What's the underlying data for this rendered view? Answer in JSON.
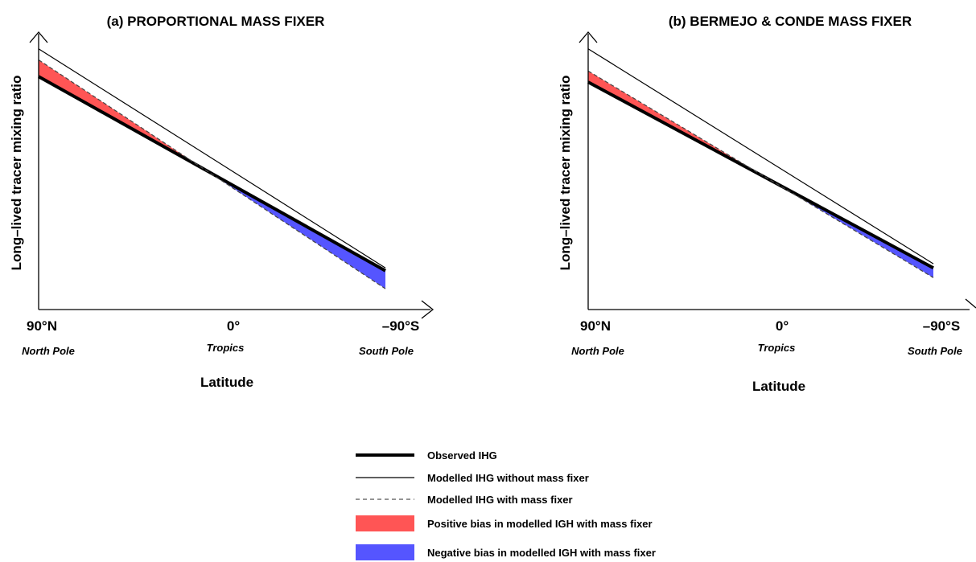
{
  "chart_data": [
    {
      "type": "line",
      "title": "(a) PROPORTIONAL MASS FIXER",
      "ylabel": "Long–lived tracer mixing ratio",
      "xlabel": "Latitude",
      "x_ticks": [
        {
          "label": "90°N",
          "region": "North Pole"
        },
        {
          "label": "0°",
          "region": "Tropics"
        },
        {
          "label": "–90°S",
          "region": "South Pole"
        }
      ],
      "xlim": [
        90,
        -90
      ],
      "ylim": [
        0,
        10
      ],
      "x": [
        90,
        -90
      ],
      "series": [
        {
          "name": "Observed IHG",
          "values": [
            8.4,
            1.4
          ]
        },
        {
          "name": "Modelled IHG without mass fixer",
          "values": [
            9.4,
            1.5
          ]
        },
        {
          "name": "Modelled IHG with mass fixer",
          "values": [
            9.0,
            0.75
          ]
        }
      ]
    },
    {
      "type": "line",
      "title": "(b) BERMEJO & CONDE MASS FIXER",
      "ylabel": "Long–lived tracer mixing ratio",
      "xlabel": "Latitude",
      "x_ticks": [
        {
          "label": "90°N",
          "region": "North Pole"
        },
        {
          "label": "0°",
          "region": "Tropics"
        },
        {
          "label": "–90°S",
          "region": "South Pole"
        }
      ],
      "xlim": [
        90,
        -90
      ],
      "ylim": [
        0,
        10
      ],
      "x": [
        90,
        -90
      ],
      "series": [
        {
          "name": "Observed IHG",
          "values": [
            8.2,
            1.5
          ]
        },
        {
          "name": "Modelled IHG without mass fixer",
          "values": [
            9.4,
            1.65
          ]
        },
        {
          "name": "Modelled IHG with mass fixer",
          "values": [
            8.6,
            1.15
          ]
        }
      ]
    }
  ],
  "legend": {
    "items": [
      {
        "label": "Observed IHG",
        "style": "thick-line",
        "color": "#000000"
      },
      {
        "label": "Modelled IHG without mass fixer",
        "style": "thin-line",
        "color": "#000000"
      },
      {
        "label": "Modelled IHG with mass fixer",
        "style": "dashed-line",
        "color": "#555555"
      },
      {
        "label": "Positive bias in modelled IGH with mass fixer",
        "style": "patch",
        "color": "#ff5555"
      },
      {
        "label": "Negative bias in modelled IGH with mass fixer",
        "style": "patch",
        "color": "#5555ff"
      }
    ]
  },
  "colors": {
    "positive_bias": "#ff5555",
    "negative_bias": "#5555ff"
  }
}
